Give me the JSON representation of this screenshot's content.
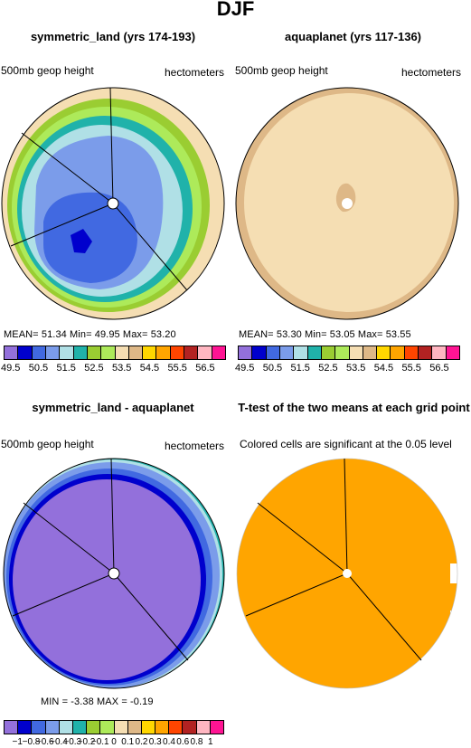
{
  "figure": {
    "title": "DJF"
  },
  "panels": [
    {
      "title": "symmetric_land (yrs 174-193)",
      "left_label": "500mb geop height",
      "right_label": "hectometers",
      "stats": "MEAN=   51.34   Min=   49.95   Max=   53.20"
    },
    {
      "title": "aquaplanet (yrs 117-136)",
      "left_label": "500mb geop height",
      "right_label": "hectometers",
      "stats": "MEAN=   53.30   Min=   53.05   Max=   53.55"
    },
    {
      "title": "symmetric_land - aquaplanet",
      "left_label": "500mb geop height",
      "right_label": "hectometers",
      "stats": "MIN  =   -3.38  MAX  =   -0.19"
    },
    {
      "title": "T-test of the two means at each grid point",
      "subtitle": "Colored cells are significant at the 0.05 level"
    }
  ],
  "colorbar_top": {
    "colors": [
      "#9370DB",
      "#0000CD",
      "#4169E1",
      "#7B9CEA",
      "#B0E0E6",
      "#20B2AA",
      "#9ACD32",
      "#ADEA5A",
      "#F5DEB3",
      "#DEB887",
      "#FFD700",
      "#FFA500",
      "#FF4500",
      "#B22222",
      "#FFB6C1",
      "#FF1493"
    ],
    "ticks": [
      "49.5",
      "50.5",
      "51.5",
      "52.5",
      "53.5",
      "54.5",
      "55.5",
      "56.5"
    ]
  },
  "colorbar_bottom": {
    "colors": [
      "#9370DB",
      "#0000CD",
      "#4169E1",
      "#7B9CEA",
      "#B0E0E6",
      "#20B2AA",
      "#9ACD32",
      "#ADEA5A",
      "#F5DEB3",
      "#DEB887",
      "#FFD700",
      "#FFA500",
      "#FF4500",
      "#B22222",
      "#FFB6C1",
      "#FF1493"
    ],
    "ticks": [
      "−1",
      "−0.8",
      "−0.6",
      "−0.4",
      "−0.3",
      "−0.2",
      "−0.1",
      "0",
      "0.1",
      "0.2",
      "0.3",
      "0.4",
      "0.6",
      "0.8",
      "1"
    ]
  }
}
